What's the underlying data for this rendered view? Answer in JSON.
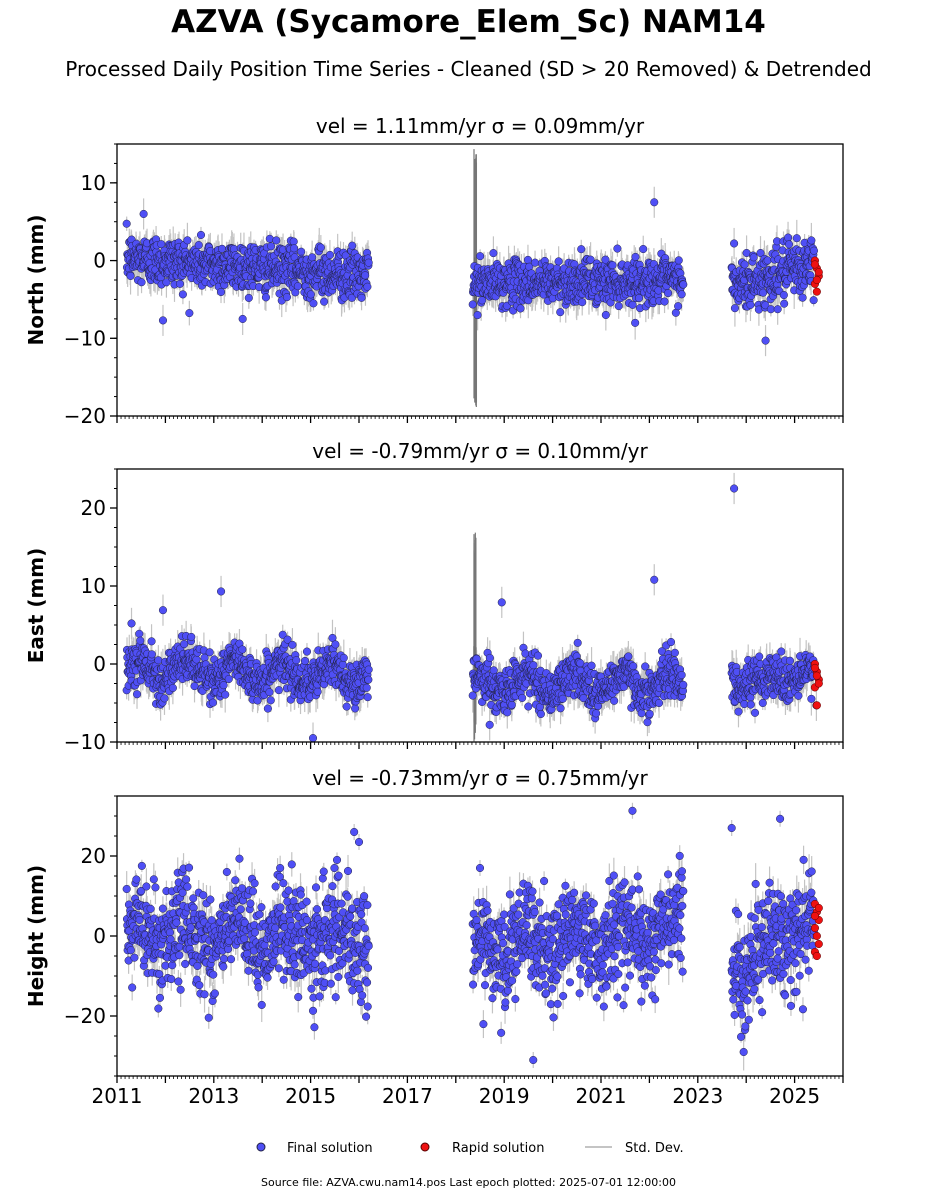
{
  "title": "AZVA (Sycamore_Elem_Sc) NAM14",
  "subtitle": "Processed Daily Position Time Series - Cleaned (SD > 20 Removed) & Detrended",
  "footer": "Source file: AZVA.cwu.nam14.pos  Last epoch plotted: 2025-07-01 12:00:00",
  "colors": {
    "final": "#4f4ff5",
    "rapid": "#ee1111",
    "stddev": "#b0b0b0",
    "edge": "#222244"
  },
  "legend": {
    "final": "Final solution",
    "rapid": "Rapid solution",
    "stddev": "Std. Dev."
  },
  "chart_data": [
    {
      "type": "scatter",
      "title": "vel = 1.11mm/yr   σ = 0.09mm/yr",
      "ylabel": "North (mm)",
      "xlim": [
        2011,
        2026
      ],
      "ylim": [
        -20,
        15
      ],
      "yticks": [
        -20,
        -10,
        0,
        10
      ],
      "x_ticks": [
        2011,
        2013,
        2015,
        2017,
        2019,
        2021,
        2023,
        2025
      ],
      "series": [
        {
          "name": "Final solution",
          "segments": [
            {
              "x": [
                2011.2,
                2016.2
              ],
              "mean": [
                0.3,
                -2.0
              ],
              "spread": 1.6
            },
            {
              "x": [
                2018.35,
                2022.7
              ],
              "mean": [
                -3.0,
                -2.5
              ],
              "spread": 1.4
            },
            {
              "x": [
                2023.7,
                2025.4
              ],
              "mean": [
                -3.5,
                -0.5
              ],
              "spread": 1.8
            }
          ],
          "outliers": [
            [
              2011.55,
              6.0
            ],
            [
              2011.95,
              -7.7
            ],
            [
              2022.1,
              7.5
            ],
            [
              2023.75,
              2.2
            ],
            [
              2021.1,
              -7.0
            ],
            [
              2024.4,
              -10.3
            ]
          ]
        },
        {
          "name": "Rapid solution",
          "x_range": [
            2025.42,
            2025.5
          ],
          "y_values": [
            0.0,
            -1.0,
            -2.0,
            -3.0,
            -4.0,
            -1.5,
            -0.5,
            -2.5
          ]
        },
        {
          "name": "Std. Dev.",
          "burst_x": 2018.4,
          "burst_range": [
            -19,
            15
          ]
        }
      ]
    },
    {
      "type": "scatter",
      "title": "vel = -0.79mm/yr   σ = 0.10mm/yr",
      "ylabel": "East (mm)",
      "xlim": [
        2011,
        2026
      ],
      "ylim": [
        -10,
        25
      ],
      "yticks": [
        -10,
        0,
        10,
        20
      ],
      "x_ticks": [
        2011,
        2013,
        2015,
        2017,
        2019,
        2021,
        2023,
        2025
      ],
      "series": [
        {
          "name": "Final solution",
          "segments": [
            {
              "x": [
                2011.2,
                2016.2
              ],
              "mean": [
                -0.5,
                -1.5
              ],
              "spread": 1.4,
              "wave": 1.2
            },
            {
              "x": [
                2018.35,
                2022.7
              ],
              "mean": [
                -2.5,
                -2.5
              ],
              "spread": 1.4,
              "wave": 1.3
            },
            {
              "x": [
                2023.7,
                2025.4
              ],
              "mean": [
                -2.5,
                -1.2
              ],
              "spread": 1.4,
              "wave": 0.6
            }
          ],
          "outliers": [
            [
              2011.3,
              5.2
            ],
            [
              2011.95,
              6.9
            ],
            [
              2013.15,
              9.3
            ],
            [
              2018.95,
              7.9
            ],
            [
              2022.1,
              10.8
            ],
            [
              2023.75,
              22.5
            ],
            [
              2015.05,
              -9.5
            ],
            [
              2018.7,
              -7.8
            ],
            [
              2025.45,
              -5.3
            ]
          ]
        },
        {
          "name": "Rapid solution",
          "x_range": [
            2025.42,
            2025.5
          ],
          "y_values": [
            0.0,
            -1.0,
            -2.0,
            -3.0,
            -1.5,
            -2.5,
            -0.5,
            -5.3
          ]
        },
        {
          "name": "Std. Dev.",
          "burst_x": 2018.4,
          "burst_range": [
            -10,
            17
          ]
        }
      ]
    },
    {
      "type": "scatter",
      "title": "vel = -0.73mm/yr   σ = 0.75mm/yr",
      "ylabel": "Height (mm)",
      "xlim": [
        2011,
        2026
      ],
      "ylim": [
        -35,
        35
      ],
      "yticks": [
        -20,
        0,
        20
      ],
      "x_ticks": [
        2011,
        2013,
        2015,
        2017,
        2019,
        2021,
        2023,
        2025
      ],
      "x_tick_labels": [
        "2011",
        "2013",
        "2015",
        "2017",
        "2019",
        "2021",
        "2023",
        "2025"
      ],
      "series": [
        {
          "name": "Final solution",
          "segments": [
            {
              "x": [
                2011.2,
                2016.2
              ],
              "mean": [
                1.0,
                -1.0
              ],
              "spread": 6.5,
              "wave": 3.0
            },
            {
              "x": [
                2018.35,
                2022.7
              ],
              "mean": [
                -4.0,
                2.0
              ],
              "spread": 6.0,
              "wave": 3.0
            },
            {
              "x": [
                2023.7,
                2025.4
              ],
              "mean": [
                -9.0,
                5.0
              ],
              "spread": 6.0,
              "wave": 2.0
            }
          ],
          "outliers": [
            [
              2015.9,
              26.0
            ],
            [
              2016.0,
              23.5
            ],
            [
              2018.5,
              17.0
            ],
            [
              2021.65,
              31.3
            ],
            [
              2023.7,
              27.0
            ],
            [
              2024.7,
              29.3
            ],
            [
              2019.6,
              -31.0
            ],
            [
              2015.05,
              -18.7
            ]
          ]
        },
        {
          "name": "Rapid solution",
          "x_range": [
            2025.42,
            2025.5
          ],
          "y_values": [
            8.0,
            6.0,
            4.0,
            2.0,
            0.0,
            -2.0,
            -4.0,
            -5.0,
            7.0,
            5.0
          ]
        },
        {
          "name": "Std. Dev.",
          "burst_x": null
        }
      ]
    }
  ]
}
